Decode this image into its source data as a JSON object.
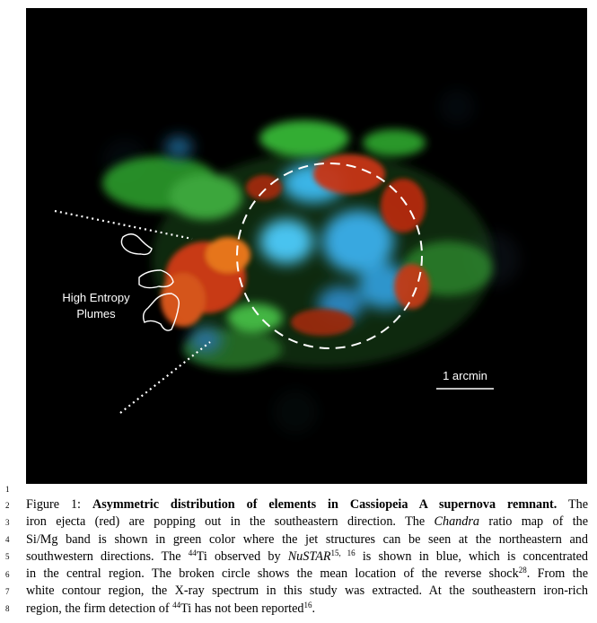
{
  "figure": {
    "annotation_label_line1": "High Entropy",
    "annotation_label_line2": "Plumes",
    "scale_bar_label": "1 arcmin"
  },
  "line_numbers": [
    "1",
    "2",
    "3",
    "4",
    "5",
    "6",
    "7",
    "8"
  ],
  "caption": {
    "figure_label": "Figure 1:",
    "title": "Asymmetric distribution of elements in Cassiopeia A supernova remnant.",
    "l1_tail": "The",
    "l2": "iron ejecta (red) are popping out in the southeastern direction.  The",
    "l2_italic": "Chandra",
    "l2_tail": "ratio map of the",
    "l3": "Si/Mg band is shown in green color where the jet structures can be seen at the northeastern and",
    "l4_a": "southwestern directions. The",
    "l4_sup1": "44",
    "l4_b": "Ti observed by",
    "l4_italic": "NuSTAR",
    "l4_sup2": "15, 16",
    "l4_c": "is shown in blue, which is concentrated",
    "l5_a": "in the central region. The broken circle shows the mean location of the reverse shock",
    "l5_sup": "28",
    "l5_b": ". From the",
    "l6": "white contour region, the X-ray spectrum in this study was extracted. At the southeastern iron-rich",
    "l7_a": "region, the firm detection of",
    "l7_sup1": "44",
    "l7_b": "Ti has not been reported",
    "l7_sup2": "16",
    "l7_c": "."
  }
}
